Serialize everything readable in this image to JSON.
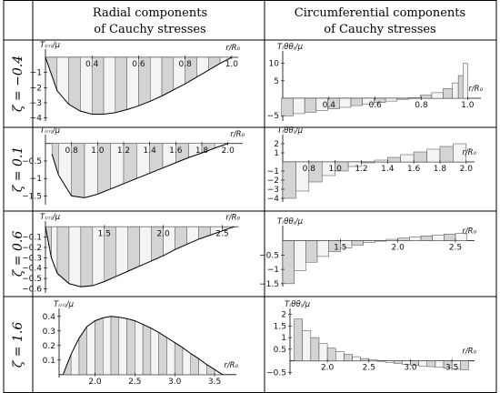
{
  "header": {
    "radial_line1": "Radial components",
    "radial_line2": "of Cauchy stresses",
    "circ_line1": "Circumferential components",
    "circ_line2": "of Cauchy stresses"
  },
  "rows": [
    {
      "label": "ζ = −0.4"
    },
    {
      "label": "ζ = 0.1"
    },
    {
      "label": "ζ = 0.6"
    },
    {
      "label": "ζ = 1.6"
    }
  ],
  "axis_labels": {
    "x": "r/R₀",
    "radial_y": "T₍ᵣᵣ₎/μ",
    "circ_y": "T₍θθ₎/μ"
  },
  "chart_data": [
    {
      "id": "radial-z-0.4",
      "type": "area",
      "xlim": [
        0.2,
        1.02
      ],
      "ylim": [
        -4.2,
        0.3
      ],
      "xticks": [
        0.4,
        0.6,
        0.8,
        1.0
      ],
      "yticks": [
        -1,
        -2,
        -3,
        -4
      ],
      "x": [
        0.2,
        0.25,
        0.3,
        0.35,
        0.4,
        0.45,
        0.5,
        0.55,
        0.6,
        0.65,
        0.7,
        0.75,
        0.8,
        0.85,
        0.9,
        0.95,
        1.0
      ],
      "values": [
        0,
        -2.2,
        -3.1,
        -3.55,
        -3.75,
        -3.75,
        -3.65,
        -3.45,
        -3.2,
        -2.9,
        -2.55,
        -2.15,
        -1.75,
        -1.3,
        -0.85,
        -0.4,
        0
      ]
    },
    {
      "id": "circ-z-0.4",
      "type": "bar",
      "xlim": [
        0.2,
        1.05
      ],
      "ylim": [
        -6.5,
        12.5
      ],
      "xticks": [
        0.4,
        0.6,
        0.8,
        1.0
      ],
      "yticks": [
        10,
        5,
        -5
      ],
      "x": [
        0.22,
        0.27,
        0.32,
        0.37,
        0.42,
        0.47,
        0.52,
        0.57,
        0.62,
        0.67,
        0.72,
        0.77,
        0.82,
        0.87,
        0.92,
        0.95,
        0.97,
        0.99
      ],
      "values": [
        -5,
        -4.4,
        -4,
        -3.5,
        -3.0,
        -2.6,
        -2.1,
        -1.7,
        -1.2,
        -0.8,
        -0.3,
        0.2,
        0.9,
        1.6,
        2.8,
        4.4,
        6.5,
        10
      ]
    },
    {
      "id": "radial-z-0.1",
      "type": "area",
      "xlim": [
        0.6,
        2.1
      ],
      "ylim": [
        -1.75,
        0.15
      ],
      "xticks": [
        0.8,
        1.0,
        1.2,
        1.4,
        1.6,
        1.8,
        2.0
      ],
      "yticks": [
        -0.5,
        -1,
        -1.5
      ],
      "x": [
        0.65,
        0.7,
        0.8,
        0.9,
        1.0,
        1.1,
        1.2,
        1.3,
        1.4,
        1.5,
        1.6,
        1.7,
        1.8,
        1.9,
        2.0
      ],
      "values": [
        -0.3,
        -0.9,
        -1.5,
        -1.55,
        -1.45,
        -1.3,
        -1.15,
        -1.0,
        -0.85,
        -0.7,
        -0.55,
        -0.4,
        -0.27,
        -0.13,
        0
      ]
    },
    {
      "id": "circ-z-0.1",
      "type": "bar",
      "xlim": [
        0.6,
        2.05
      ],
      "ylim": [
        -4.4,
        2.6
      ],
      "xticks": [
        0.8,
        1.0,
        1.2,
        1.4,
        1.6,
        1.8,
        2.0
      ],
      "yticks": [
        2,
        1,
        -1,
        -2,
        -3,
        -4
      ],
      "x": [
        0.65,
        0.75,
        0.85,
        0.95,
        1.05,
        1.15,
        1.25,
        1.35,
        1.45,
        1.55,
        1.65,
        1.75,
        1.85,
        1.95
      ],
      "values": [
        -4,
        -3.2,
        -2.2,
        -1.5,
        -1,
        -0.5,
        -0.1,
        0.2,
        0.5,
        0.8,
        1.1,
        1.4,
        1.7,
        2
      ]
    },
    {
      "id": "radial-z-0.6",
      "type": "area",
      "xlim": [
        1.0,
        2.62
      ],
      "ylim": [
        -0.64,
        0.02
      ],
      "xticks": [
        1.5,
        2.0,
        2.5
      ],
      "yticks": [
        -0.1,
        -0.2,
        -0.3,
        -0.4,
        -0.5,
        -0.6
      ],
      "x": [
        1.0,
        1.05,
        1.1,
        1.2,
        1.3,
        1.4,
        1.5,
        1.6,
        1.7,
        1.8,
        1.9,
        2.0,
        2.1,
        2.2,
        2.3,
        2.4,
        2.5,
        2.6
      ],
      "values": [
        0,
        -0.3,
        -0.45,
        -0.55,
        -0.58,
        -0.57,
        -0.53,
        -0.48,
        -0.43,
        -0.38,
        -0.33,
        -0.28,
        -0.22,
        -0.17,
        -0.12,
        -0.08,
        -0.04,
        0
      ]
    },
    {
      "id": "circ-z-0.6",
      "type": "bar",
      "xlim": [
        1.0,
        2.65
      ],
      "ylim": [
        -1.6,
        0.4
      ],
      "xticks": [
        1.5,
        2.0,
        2.5
      ],
      "yticks": [
        -0.5,
        -1.0,
        -1.5
      ],
      "x": [
        1.05,
        1.15,
        1.25,
        1.35,
        1.45,
        1.55,
        1.65,
        1.75,
        1.85,
        1.95,
        2.05,
        2.15,
        2.25,
        2.35,
        2.45,
        2.55
      ],
      "values": [
        -1.5,
        -1.05,
        -0.75,
        -0.55,
        -0.38,
        -0.25,
        -0.15,
        -0.06,
        0.0,
        0.05,
        0.09,
        0.13,
        0.17,
        0.2,
        0.23,
        0.26
      ]
    },
    {
      "id": "radial-z-1.6",
      "type": "area",
      "xlim": [
        1.55,
        3.75
      ],
      "ylim": [
        -0.02,
        0.43
      ],
      "xticks": [
        2.0,
        2.5,
        3.0,
        3.5
      ],
      "yticks": [
        0.4,
        0.3,
        0.2,
        0.1
      ],
      "x": [
        1.6,
        1.7,
        1.8,
        1.9,
        2.0,
        2.1,
        2.2,
        2.3,
        2.4,
        2.5,
        2.6,
        2.7,
        2.8,
        2.9,
        3.0,
        3.1,
        3.2,
        3.3,
        3.4,
        3.5,
        3.6
      ],
      "values": [
        0,
        0.14,
        0.25,
        0.33,
        0.37,
        0.39,
        0.4,
        0.395,
        0.385,
        0.37,
        0.345,
        0.32,
        0.29,
        0.255,
        0.22,
        0.185,
        0.145,
        0.11,
        0.07,
        0.035,
        0
      ]
    },
    {
      "id": "circ-z-1.6",
      "type": "bar",
      "xlim": [
        1.55,
        3.75
      ],
      "ylim": [
        -0.6,
        2.1
      ],
      "xticks": [
        2.0,
        2.5,
        3.0,
        3.5
      ],
      "yticks": [
        2.0,
        1.5,
        1.0,
        0.5,
        -0.5
      ],
      "x": [
        1.65,
        1.75,
        1.85,
        1.95,
        2.05,
        2.15,
        2.25,
        2.35,
        2.45,
        2.55,
        2.65,
        2.75,
        2.85,
        2.95,
        3.05,
        3.15,
        3.25,
        3.35,
        3.45,
        3.55,
        3.65
      ],
      "values": [
        1.8,
        1.3,
        1.0,
        0.75,
        0.55,
        0.4,
        0.28,
        0.18,
        0.1,
        0.04,
        -0.02,
        -0.07,
        -0.11,
        -0.15,
        -0.19,
        -0.22,
        -0.25,
        -0.28,
        -0.31,
        -0.34,
        -0.38
      ]
    }
  ]
}
